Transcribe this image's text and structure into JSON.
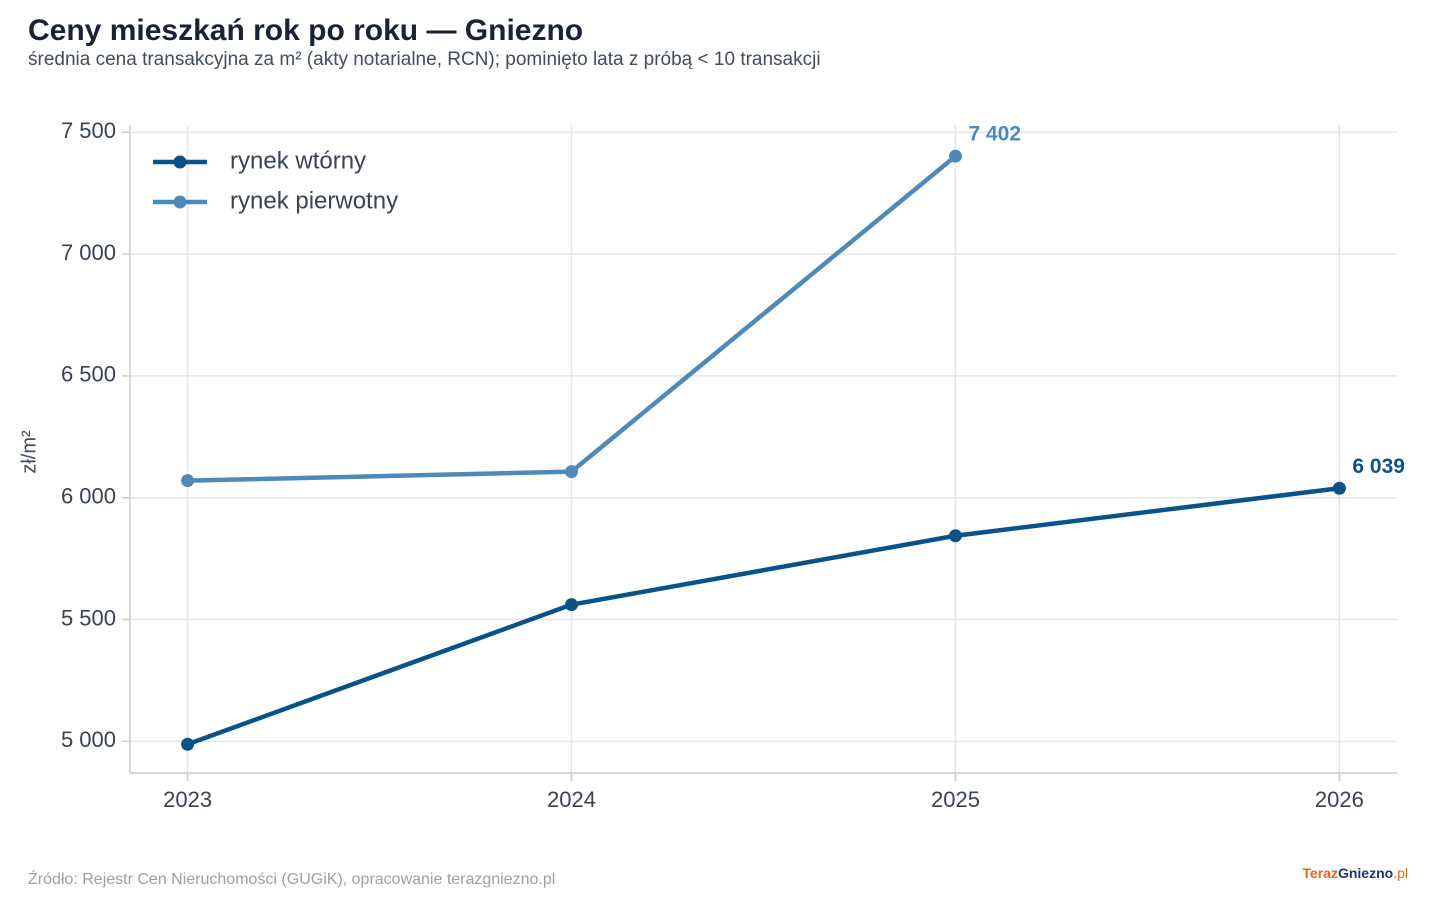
{
  "chart_data": {
    "type": "line",
    "title": "Ceny mieszkań rok po roku — Gniezno",
    "subtitle": "średnia cena transakcyjna za m² (akty notarialne, RCN); pominięto lata z próbą < 10 transakcji",
    "y_label": "zł/m²",
    "x": [
      2023,
      2024,
      2025,
      2026
    ],
    "xlim": [
      2022.85,
      2026.15
    ],
    "xticks": [
      2023,
      2024,
      2025,
      2026
    ],
    "ylim": [
      4870,
      7530
    ],
    "yticks": [
      {
        "value": 5000,
        "label": "5 000"
      },
      {
        "value": 5500,
        "label": "5 500"
      },
      {
        "value": 6000,
        "label": "6 000"
      },
      {
        "value": 6500,
        "label": "6 500"
      },
      {
        "value": 7000,
        "label": "7 000"
      },
      {
        "value": 7500,
        "label": "7 500"
      }
    ],
    "grid": true,
    "legend": "upper left",
    "series": [
      {
        "name": "rynek wtórny",
        "color": "#0b5288",
        "values": [
          4988,
          5561,
          5844,
          6039
        ],
        "value_labels": [
          null,
          null,
          null,
          "6 039"
        ]
      },
      {
        "name": "rynek pierwotny",
        "color": "#4f89b9",
        "values": [
          6070,
          6107,
          7402,
          null
        ],
        "value_labels": [
          null,
          null,
          "7 402",
          null
        ]
      }
    ],
    "source": "Źródło: Rejestr Cen Nieruchomości (GUGiK), opracowanie terazgniezno.pl",
    "logo": [
      "Teraz",
      "Gniezno",
      ".pl"
    ]
  }
}
